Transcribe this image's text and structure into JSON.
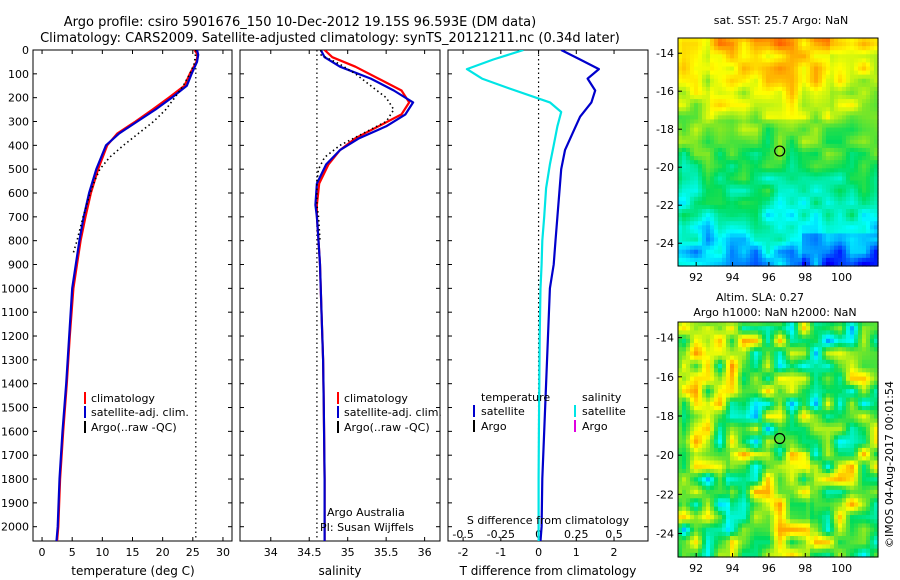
{
  "header": {
    "title_line1": "Argo profile: csiro 5901676_150 10-Dec-2012 19.15S 96.593E (DM data)",
    "title_line2": "Climatology: CARS2009. Satellite-adjusted climatology: synTS_20121211.nc (0.34d later)"
  },
  "colors": {
    "climatology": "#ff0000",
    "satellite": "#0000cc",
    "argo": "#000000",
    "satellite_salinity": "#00e5e5",
    "argo_salinity": "#e000e0"
  },
  "side_text": "©IMOS 04-Aug-2017 00:01:54",
  "chart_data": [
    {
      "type": "line",
      "id": "temperature",
      "xlabel": "temperature (deg C)",
      "ylabel": "",
      "xlim": [
        -1.5,
        31.5
      ],
      "ylim": [
        2060,
        0
      ],
      "xticks": [
        0,
        5,
        10,
        15,
        20,
        25,
        30
      ],
      "yticks": [
        0,
        100,
        200,
        300,
        400,
        500,
        600,
        700,
        800,
        900,
        1000,
        1100,
        1200,
        1300,
        1400,
        1500,
        1600,
        1700,
        1800,
        1900,
        2000
      ],
      "dotted_vline_x": 25.5,
      "legend": [
        "climatology",
        "satellite-adj. clim.",
        "Argo(..raw -QC)"
      ],
      "series": [
        {
          "name": "climatology",
          "x": [
            25.3,
            25.8,
            25.6,
            24.5,
            23.6,
            21,
            18.3,
            15.5,
            12.5,
            10.8,
            9.3,
            8.1,
            7.2,
            6.4,
            5.8,
            5.2,
            4.6,
            4.1,
            3.5,
            3,
            2.7,
            2.5
          ],
          "y": [
            0,
            20,
            50,
            100,
            150,
            200,
            250,
            300,
            350,
            400,
            500,
            600,
            700,
            800,
            900,
            1000,
            1200,
            1400,
            1600,
            1800,
            2000,
            2060
          ]
        },
        {
          "name": "satellite-adj. clim.",
          "x": [
            25.7,
            25.9,
            25.7,
            24.8,
            24,
            21.5,
            18.8,
            15.8,
            12.8,
            10.6,
            9,
            7.8,
            6.9,
            6.2,
            5.6,
            5,
            4.5,
            4,
            3.4,
            2.9,
            2.6,
            2.4
          ],
          "y": [
            0,
            20,
            50,
            100,
            150,
            200,
            250,
            300,
            350,
            400,
            500,
            600,
            700,
            800,
            900,
            1000,
            1200,
            1400,
            1600,
            1800,
            2000,
            2060
          ]
        },
        {
          "name": "Argo(..raw -QC)",
          "x": [
            25.5,
            25.4,
            25.2,
            24.5,
            23.4,
            22,
            20.5,
            18.5,
            16,
            13.5,
            11.2,
            9.6,
            8.7,
            8,
            7.4,
            6.8,
            6.3,
            5.8,
            5.2
          ],
          "y": [
            0,
            30,
            60,
            100,
            150,
            200,
            250,
            300,
            350,
            400,
            450,
            500,
            550,
            600,
            650,
            700,
            750,
            800,
            850
          ]
        }
      ]
    },
    {
      "type": "line",
      "id": "salinity",
      "xlabel": "salinity",
      "ylabel": "",
      "xlim": [
        33.6,
        36.2
      ],
      "ylim": [
        2060,
        0
      ],
      "xticks": [
        34,
        34.5,
        35,
        35.5,
        36
      ],
      "dotted_vline_x": 34.6,
      "legend": [
        "climatology",
        "satellite-adj. clim.",
        "Argo(..raw -QC)"
      ],
      "annotation_line1": "Argo Australia",
      "annotation_line2": "PI: Susan Wijffels",
      "series": [
        {
          "name": "climatology",
          "x": [
            34.7,
            34.8,
            35.1,
            35.4,
            35.7,
            35.8,
            35.7,
            35.4,
            35.1,
            34.9,
            34.75,
            34.63,
            34.6,
            34.6,
            34.62,
            34.64,
            34.66,
            34.68,
            34.69,
            34.7,
            34.7
          ],
          "y": [
            0,
            30,
            70,
            120,
            170,
            220,
            270,
            320,
            370,
            420,
            480,
            560,
            650,
            700,
            800,
            900,
            1100,
            1300,
            1500,
            1800,
            2060
          ]
        },
        {
          "name": "satellite-adj. clim.",
          "x": [
            34.65,
            34.7,
            34.9,
            35.3,
            35.6,
            35.85,
            35.75,
            35.5,
            35.15,
            34.9,
            34.72,
            34.6,
            34.58,
            34.6,
            34.62,
            34.64,
            34.66,
            34.68,
            34.69,
            34.7,
            34.7
          ],
          "y": [
            0,
            30,
            70,
            120,
            170,
            220,
            270,
            320,
            370,
            420,
            480,
            560,
            650,
            700,
            800,
            900,
            1100,
            1300,
            1500,
            1800,
            2060
          ]
        },
        {
          "name": "Argo(..raw -QC)",
          "x": [
            34.65,
            34.65,
            34.9,
            35.1,
            35.3,
            35.5,
            35.6,
            35.5,
            35.2,
            34.9,
            34.7,
            34.62,
            34.6,
            34.6,
            34.6,
            34.62,
            34.64
          ],
          "y": [
            0,
            20,
            60,
            100,
            150,
            200,
            250,
            300,
            350,
            400,
            450,
            500,
            550,
            600,
            650,
            700,
            800
          ]
        }
      ]
    },
    {
      "type": "line",
      "id": "difference",
      "xlabel": "T difference from climatology",
      "xlabel_top": "S difference from climatology",
      "xlim": [
        -2.4,
        2.9
      ],
      "ylim": [
        2060,
        0
      ],
      "xticks": [
        -2,
        -1,
        0,
        1,
        2
      ],
      "xtick_labels_secondary": [
        "-0.5",
        "-0.25",
        "0",
        "0.25",
        "0.5"
      ],
      "xtick_secondary_values": [
        -2,
        -1,
        0,
        1,
        2
      ],
      "dotted_vline_x": 0,
      "legend_temperature_title": "temperature",
      "legend_salinity_title": "salinity",
      "legend": [
        "satellite",
        "Argo",
        "satellite",
        "Argo"
      ],
      "series": [
        {
          "name": "temperature satellite",
          "x": [
            0.6,
            1.1,
            1.6,
            1.3,
            1.5,
            1.4,
            1.1,
            0.9,
            0.7,
            0.6,
            0.55,
            0.5,
            0.45,
            0.4,
            0.3,
            0.25,
            0.2,
            0.15,
            0.1,
            0.08,
            0.05
          ],
          "y": [
            0,
            40,
            80,
            120,
            170,
            220,
            280,
            350,
            420,
            500,
            600,
            700,
            800,
            900,
            1000,
            1200,
            1400,
            1600,
            1800,
            2000,
            2060
          ]
        },
        {
          "name": "salinity satellite",
          "x": [
            -0.4,
            -1.2,
            -1.9,
            -1.5,
            -0.8,
            0.3,
            0.6,
            0.5,
            0.4,
            0.3,
            0.2,
            0.15,
            0.1,
            0.08,
            0.05,
            0.03,
            0.02,
            0.01,
            0,
            0
          ],
          "y": [
            0,
            40,
            80,
            120,
            160,
            220,
            260,
            320,
            400,
            480,
            580,
            700,
            800,
            900,
            1000,
            1200,
            1400,
            1600,
            1800,
            2060
          ]
        }
      ]
    },
    {
      "type": "heatmap",
      "id": "sst_map",
      "title": "sat. SST: 25.7  Argo: NaN",
      "xticks": [
        92,
        94,
        96,
        98,
        100
      ],
      "yticks": [
        -14,
        -16,
        -18,
        -20,
        -22,
        -24
      ],
      "xlim": [
        91,
        102
      ],
      "ylim": [
        -25.2,
        -13.2
      ],
      "marker": [
        96.593,
        -19.15
      ]
    },
    {
      "type": "heatmap",
      "id": "sla_map",
      "title_line1": "Altim. SLA: 0.27",
      "title_line2": "Argo h1000: NaN h2000: NaN",
      "xticks": [
        92,
        94,
        96,
        98,
        100
      ],
      "yticks": [
        -14,
        -16,
        -18,
        -20,
        -22,
        -24
      ],
      "xlim": [
        91,
        102
      ],
      "ylim": [
        -25.2,
        -13.2
      ],
      "marker": [
        96.593,
        -19.15
      ]
    }
  ]
}
